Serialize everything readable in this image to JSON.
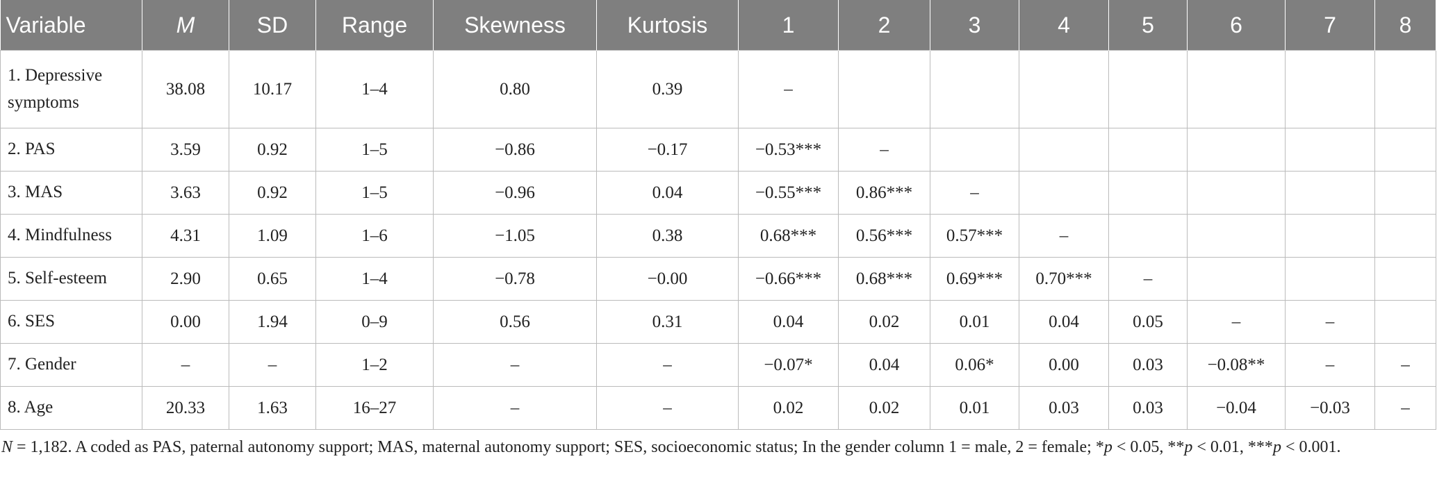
{
  "table": {
    "header": [
      "Variable",
      "M",
      "SD",
      "Range",
      "Skewness",
      "Kurtosis",
      "1",
      "2",
      "3",
      "4",
      "5",
      "6",
      "7",
      "8"
    ],
    "rows": [
      [
        "1. Depressive symptoms",
        "38.08",
        "10.17",
        "1–4",
        "0.80",
        "0.39",
        "–",
        null,
        null,
        null,
        null,
        null,
        null,
        null
      ],
      [
        "2. PAS",
        "3.59",
        "0.92",
        "1–5",
        "−0.86",
        "−0.17",
        "−0.53***",
        "–",
        null,
        null,
        null,
        null,
        null,
        null
      ],
      [
        "3. MAS",
        "3.63",
        "0.92",
        "1–5",
        "−0.96",
        "0.04",
        "−0.55***",
        "0.86***",
        "–",
        null,
        null,
        null,
        null,
        null
      ],
      [
        "4. Mindfulness",
        "4.31",
        "1.09",
        "1–6",
        "−1.05",
        "0.38",
        "0.68***",
        "0.56***",
        "0.57***",
        "–",
        null,
        null,
        null,
        null
      ],
      [
        "5. Self-esteem",
        "2.90",
        "0.65",
        "1–4",
        "−0.78",
        "−0.00",
        "−0.66***",
        "0.68***",
        "0.69***",
        "0.70***",
        "–",
        null,
        null,
        null
      ],
      [
        "6. SES",
        "0.00",
        "1.94",
        "0–9",
        "0.56",
        "0.31",
        "0.04",
        "0.02",
        "0.01",
        "0.04",
        "0.05",
        "–",
        "–",
        null
      ],
      [
        "7. Gender",
        "–",
        "–",
        "1–2",
        "–",
        "–",
        "−0.07*",
        "0.04",
        "0.06*",
        "0.00",
        "0.03",
        "−0.08**",
        "–",
        "–"
      ],
      [
        "8. Age",
        "20.33",
        "1.63",
        "16–27",
        "–",
        "–",
        "0.02",
        "0.02",
        "0.01",
        "0.03",
        "0.03",
        "−0.04",
        "−0.03",
        "–"
      ]
    ]
  },
  "footnote": [
    "N",
    " = 1,182. A coded as PAS, paternal autonomy support; MAS, maternal autonomy support; SES, socioeconomic status; In the gender column 1 = male, 2 = female; *",
    "p",
    " < 0.05, **",
    "p",
    " < 0.01, ***",
    "p",
    " < 0.001."
  ]
}
